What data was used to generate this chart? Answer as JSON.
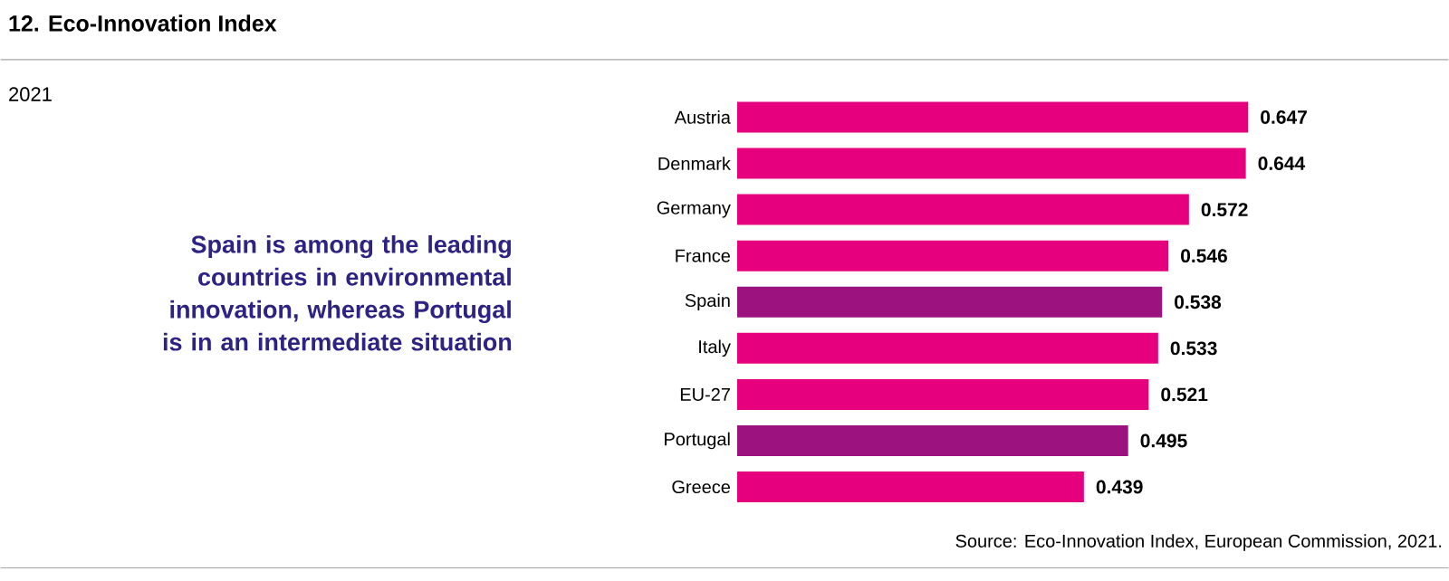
{
  "chart_data": {
    "type": "bar",
    "orientation": "horizontal",
    "title": "12. Eco-Innovation Index",
    "subtitle": "2021",
    "categories": [
      "Austria",
      "Denmark",
      "Germany",
      "France",
      "Spain",
      "Italy",
      "EU-27",
      "Portugal",
      "Greece"
    ],
    "values": [
      0.647,
      0.644,
      0.572,
      0.546,
      0.538,
      0.533,
      0.521,
      0.495,
      0.439
    ],
    "value_labels": [
      "0.647",
      "0.644",
      "0.572",
      "0.546",
      "0.538",
      "0.533",
      "0.521",
      "0.495",
      "0.439"
    ],
    "colors": [
      "#e6007e",
      "#e6007e",
      "#e6007e",
      "#e6007e",
      "#9c137f",
      "#e6007e",
      "#e6007e",
      "#9c137f",
      "#e6007e"
    ],
    "annotations": [
      "Spain is among the leading countries in environmental innovation, whereas Portugal is in an intermediate situation",
      "Source: Eco-Innovation Index, European Commission, 2021."
    ]
  }
}
